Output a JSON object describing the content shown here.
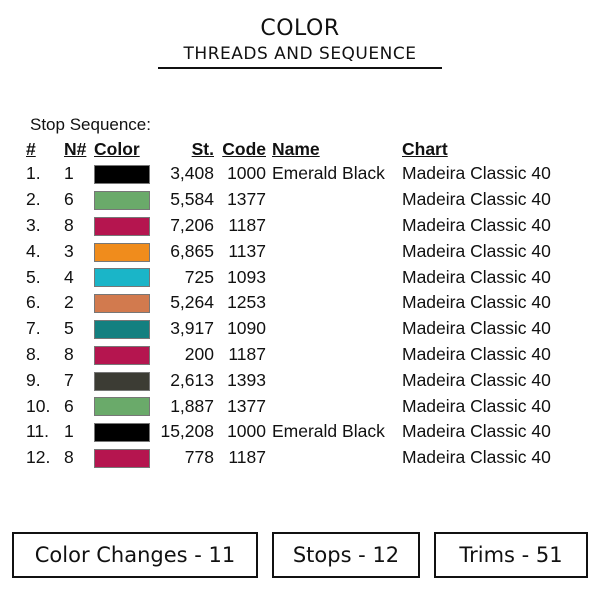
{
  "header": {
    "title": "COLOR",
    "subtitle": "THREADS AND SEQUENCE"
  },
  "sequence_label": "Stop Sequence:",
  "columns": [
    "#",
    "N#",
    "Color",
    "St.",
    "Code",
    "Name",
    "Chart"
  ],
  "rows": [
    {
      "num": "1.",
      "n": "1",
      "color": "#000000",
      "st": "3,408",
      "code": "1000",
      "name": "Emerald Black",
      "chart": "Madeira Classic 40"
    },
    {
      "num": "2.",
      "n": "6",
      "color": "#6aaa6a",
      "st": "5,584",
      "code": "1377",
      "name": "",
      "chart": "Madeira Classic 40"
    },
    {
      "num": "3.",
      "n": "8",
      "color": "#b5154f",
      "st": "7,206",
      "code": "1187",
      "name": "",
      "chart": "Madeira Classic 40"
    },
    {
      "num": "4.",
      "n": "3",
      "color": "#f08c1c",
      "st": "6,865",
      "code": "1137",
      "name": "",
      "chart": "Madeira Classic 40"
    },
    {
      "num": "5.",
      "n": "4",
      "color": "#1ab5c8",
      "st": "725",
      "code": "1093",
      "name": "",
      "chart": "Madeira Classic 40"
    },
    {
      "num": "6.",
      "n": "2",
      "color": "#d27a4e",
      "st": "5,264",
      "code": "1253",
      "name": "",
      "chart": "Madeira Classic 40"
    },
    {
      "num": "7.",
      "n": "5",
      "color": "#138080",
      "st": "3,917",
      "code": "1090",
      "name": "",
      "chart": "Madeira Classic 40"
    },
    {
      "num": "8.",
      "n": "8",
      "color": "#b5154f",
      "st": "200",
      "code": "1187",
      "name": "",
      "chart": "Madeira Classic 40"
    },
    {
      "num": "9.",
      "n": "7",
      "color": "#3c3c34",
      "st": "2,613",
      "code": "1393",
      "name": "",
      "chart": "Madeira Classic 40"
    },
    {
      "num": "10.",
      "n": "6",
      "color": "#6aaa6a",
      "st": "1,887",
      "code": "1377",
      "name": "",
      "chart": "Madeira Classic 40"
    },
    {
      "num": "11.",
      "n": "1",
      "color": "#000000",
      "st": "15,208",
      "code": "1000",
      "name": "Emerald Black",
      "chart": "Madeira Classic 40"
    },
    {
      "num": "12.",
      "n": "8",
      "color": "#b5154f",
      "st": "778",
      "code": "1187",
      "name": "",
      "chart": "Madeira Classic 40"
    }
  ],
  "summary": {
    "color_changes": "Color Changes - 11",
    "stops": "Stops - 12",
    "trims": "Trims - 51"
  }
}
